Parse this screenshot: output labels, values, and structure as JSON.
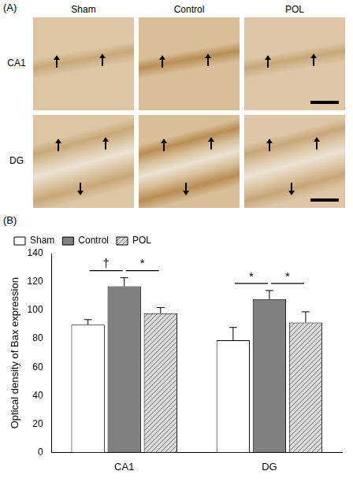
{
  "panel_a": {
    "label": "(A)",
    "columns": [
      "Sham",
      "Control",
      "POL"
    ],
    "rows": [
      "CA1",
      "DG"
    ]
  },
  "chart_data": {
    "label": "(B)",
    "type": "bar",
    "categories": [
      "CA1",
      "DG"
    ],
    "y_label": "Optical density of Bax expression",
    "ylim": [
      0,
      140
    ],
    "yticks": [
      0,
      20,
      40,
      60,
      80,
      100,
      120,
      140
    ],
    "grid": false,
    "legend": "top",
    "series": [
      {
        "name": "Sham",
        "color": "#ffffff",
        "values": [
          90,
          79
        ],
        "errors": [
          3.5,
          9
        ]
      },
      {
        "name": "Control",
        "color": "#808080",
        "values": [
          117,
          108
        ],
        "errors": [
          6,
          6
        ]
      },
      {
        "name": "POL",
        "color": "#d9d9d9",
        "values": [
          98,
          91.5
        ],
        "errors": [
          4,
          7.5
        ]
      }
    ],
    "annotations": [
      {
        "text": "†",
        "category": "CA1",
        "from": "Sham",
        "to": "Control",
        "y": 128
      },
      {
        "text": "*",
        "category": "CA1",
        "from": "Control",
        "to": "POL",
        "y": 128
      },
      {
        "text": "*",
        "category": "DG",
        "from": "Sham",
        "to": "Control",
        "y": 119
      },
      {
        "text": "*",
        "category": "DG",
        "from": "Control",
        "to": "POL",
        "y": 119
      }
    ]
  }
}
